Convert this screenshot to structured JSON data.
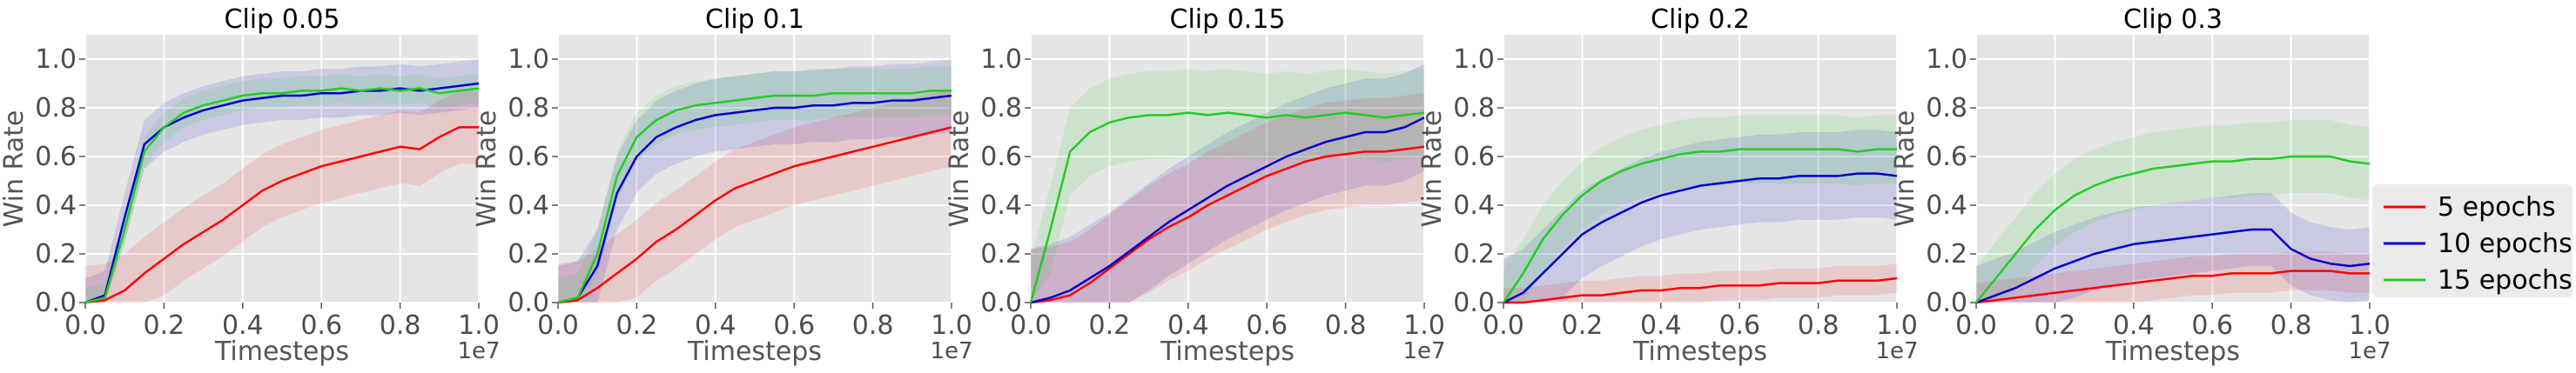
{
  "chart_data": {
    "type": "line",
    "xlim": [
      0,
      1.0
    ],
    "ylim": [
      0,
      1.1
    ],
    "x_ticks": [
      "0.0",
      "0.2",
      "0.4",
      "0.6",
      "0.8",
      "1.0"
    ],
    "y_ticks": [
      "0.0",
      "0.2",
      "0.4",
      "0.6",
      "0.8",
      "1.0"
    ],
    "x_offset_label": "1e7",
    "xlabel": "Timesteps",
    "ylabel": "Win Rate",
    "grid": true,
    "shaded_bands": true,
    "legend": {
      "placement": "right",
      "entries": [
        "5 epochs",
        "10 epochs",
        "15 epochs"
      ]
    },
    "colors": {
      "5 epochs": "#ff0000",
      "10 epochs": "#0000cc",
      "15 epochs": "#22cc22"
    },
    "panels": [
      {
        "title": "Clip 0.05",
        "x": [
          0.0,
          0.05,
          0.1,
          0.15,
          0.2,
          0.25,
          0.3,
          0.35,
          0.4,
          0.45,
          0.5,
          0.55,
          0.6,
          0.65,
          0.7,
          0.75,
          0.8,
          0.85,
          0.9,
          0.95,
          1.0
        ],
        "series": [
          {
            "name": "5 epochs",
            "values": [
              0.0,
              0.01,
              0.05,
              0.12,
              0.18,
              0.24,
              0.29,
              0.34,
              0.4,
              0.46,
              0.5,
              0.53,
              0.56,
              0.58,
              0.6,
              0.62,
              0.64,
              0.63,
              0.68,
              0.72,
              0.72
            ],
            "band": 0.15
          },
          {
            "name": "10 epochs",
            "values": [
              0.0,
              0.03,
              0.35,
              0.65,
              0.72,
              0.76,
              0.79,
              0.81,
              0.83,
              0.84,
              0.85,
              0.85,
              0.86,
              0.86,
              0.87,
              0.87,
              0.88,
              0.87,
              0.88,
              0.89,
              0.9
            ],
            "band": 0.1
          },
          {
            "name": "15 epochs",
            "values": [
              0.0,
              0.02,
              0.3,
              0.62,
              0.72,
              0.78,
              0.81,
              0.83,
              0.85,
              0.86,
              0.86,
              0.87,
              0.87,
              0.88,
              0.87,
              0.88,
              0.87,
              0.88,
              0.86,
              0.87,
              0.88
            ],
            "band": 0.06
          }
        ]
      },
      {
        "title": "Clip 0.1",
        "x": [
          0.0,
          0.05,
          0.1,
          0.15,
          0.2,
          0.25,
          0.3,
          0.35,
          0.4,
          0.45,
          0.5,
          0.55,
          0.6,
          0.65,
          0.7,
          0.75,
          0.8,
          0.85,
          0.9,
          0.95,
          1.0
        ],
        "series": [
          {
            "name": "5 epochs",
            "values": [
              0.0,
              0.01,
              0.06,
              0.12,
              0.18,
              0.25,
              0.3,
              0.36,
              0.42,
              0.47,
              0.5,
              0.53,
              0.56,
              0.58,
              0.6,
              0.62,
              0.64,
              0.66,
              0.68,
              0.7,
              0.72
            ],
            "band": 0.16
          },
          {
            "name": "10 epochs",
            "values": [
              0.0,
              0.02,
              0.15,
              0.45,
              0.6,
              0.68,
              0.72,
              0.75,
              0.77,
              0.78,
              0.79,
              0.8,
              0.8,
              0.81,
              0.81,
              0.82,
              0.82,
              0.83,
              0.83,
              0.84,
              0.85
            ],
            "band": 0.15
          },
          {
            "name": "15 epochs",
            "values": [
              0.0,
              0.02,
              0.2,
              0.52,
              0.68,
              0.75,
              0.79,
              0.81,
              0.82,
              0.83,
              0.84,
              0.85,
              0.85,
              0.85,
              0.86,
              0.86,
              0.86,
              0.86,
              0.86,
              0.87,
              0.87
            ],
            "band": 0.1
          }
        ]
      },
      {
        "title": "Clip 0.15",
        "x": [
          0.0,
          0.05,
          0.1,
          0.15,
          0.2,
          0.25,
          0.3,
          0.35,
          0.4,
          0.45,
          0.5,
          0.55,
          0.6,
          0.65,
          0.7,
          0.75,
          0.8,
          0.85,
          0.9,
          0.95,
          1.0
        ],
        "series": [
          {
            "name": "5 epochs",
            "values": [
              0.0,
              0.01,
              0.03,
              0.08,
              0.14,
              0.2,
              0.26,
              0.31,
              0.35,
              0.4,
              0.44,
              0.48,
              0.52,
              0.55,
              0.58,
              0.6,
              0.61,
              0.62,
              0.62,
              0.63,
              0.64
            ],
            "band": 0.22
          },
          {
            "name": "10 epochs",
            "values": [
              0.0,
              0.02,
              0.05,
              0.1,
              0.15,
              0.21,
              0.27,
              0.33,
              0.38,
              0.43,
              0.48,
              0.52,
              0.56,
              0.6,
              0.63,
              0.66,
              0.68,
              0.7,
              0.7,
              0.72,
              0.76
            ],
            "band": 0.22
          },
          {
            "name": "15 epochs",
            "values": [
              0.0,
              0.3,
              0.62,
              0.7,
              0.74,
              0.76,
              0.77,
              0.77,
              0.78,
              0.77,
              0.78,
              0.77,
              0.76,
              0.77,
              0.76,
              0.77,
              0.78,
              0.77,
              0.76,
              0.77,
              0.78
            ],
            "band": 0.18
          }
        ]
      },
      {
        "title": "Clip 0.2",
        "x": [
          0.0,
          0.05,
          0.1,
          0.15,
          0.2,
          0.25,
          0.3,
          0.35,
          0.4,
          0.45,
          0.5,
          0.55,
          0.6,
          0.65,
          0.7,
          0.75,
          0.8,
          0.85,
          0.9,
          0.95,
          1.0
        ],
        "series": [
          {
            "name": "5 epochs",
            "values": [
              0.0,
              0.0,
              0.01,
              0.02,
              0.03,
              0.03,
              0.04,
              0.05,
              0.05,
              0.06,
              0.06,
              0.07,
              0.07,
              0.07,
              0.08,
              0.08,
              0.08,
              0.09,
              0.09,
              0.09,
              0.1
            ],
            "band": 0.06
          },
          {
            "name": "10 epochs",
            "values": [
              0.0,
              0.04,
              0.12,
              0.2,
              0.28,
              0.33,
              0.37,
              0.41,
              0.44,
              0.46,
              0.48,
              0.49,
              0.5,
              0.51,
              0.51,
              0.52,
              0.52,
              0.52,
              0.53,
              0.53,
              0.52
            ],
            "band": 0.18
          },
          {
            "name": "15 epochs",
            "values": [
              0.0,
              0.12,
              0.26,
              0.36,
              0.44,
              0.5,
              0.54,
              0.57,
              0.59,
              0.61,
              0.62,
              0.62,
              0.63,
              0.63,
              0.63,
              0.63,
              0.63,
              0.63,
              0.62,
              0.63,
              0.63
            ],
            "band": 0.14
          }
        ]
      },
      {
        "title": "Clip 0.3",
        "x": [
          0.0,
          0.05,
          0.1,
          0.15,
          0.2,
          0.25,
          0.3,
          0.35,
          0.4,
          0.45,
          0.5,
          0.55,
          0.6,
          0.65,
          0.7,
          0.75,
          0.8,
          0.85,
          0.9,
          0.95,
          1.0
        ],
        "series": [
          {
            "name": "5 epochs",
            "values": [
              0.0,
              0.01,
              0.02,
              0.03,
              0.04,
              0.05,
              0.06,
              0.07,
              0.08,
              0.09,
              0.1,
              0.11,
              0.11,
              0.12,
              0.12,
              0.12,
              0.13,
              0.13,
              0.13,
              0.12,
              0.12
            ],
            "band": 0.08
          },
          {
            "name": "10 epochs",
            "values": [
              0.0,
              0.03,
              0.06,
              0.1,
              0.14,
              0.17,
              0.2,
              0.22,
              0.24,
              0.25,
              0.26,
              0.27,
              0.28,
              0.29,
              0.3,
              0.3,
              0.22,
              0.18,
              0.16,
              0.15,
              0.16
            ],
            "band": 0.15
          },
          {
            "name": "15 epochs",
            "values": [
              0.0,
              0.1,
              0.2,
              0.3,
              0.38,
              0.44,
              0.48,
              0.51,
              0.53,
              0.55,
              0.56,
              0.57,
              0.58,
              0.58,
              0.59,
              0.59,
              0.6,
              0.6,
              0.6,
              0.58,
              0.57
            ],
            "band": 0.15
          }
        ]
      }
    ]
  }
}
